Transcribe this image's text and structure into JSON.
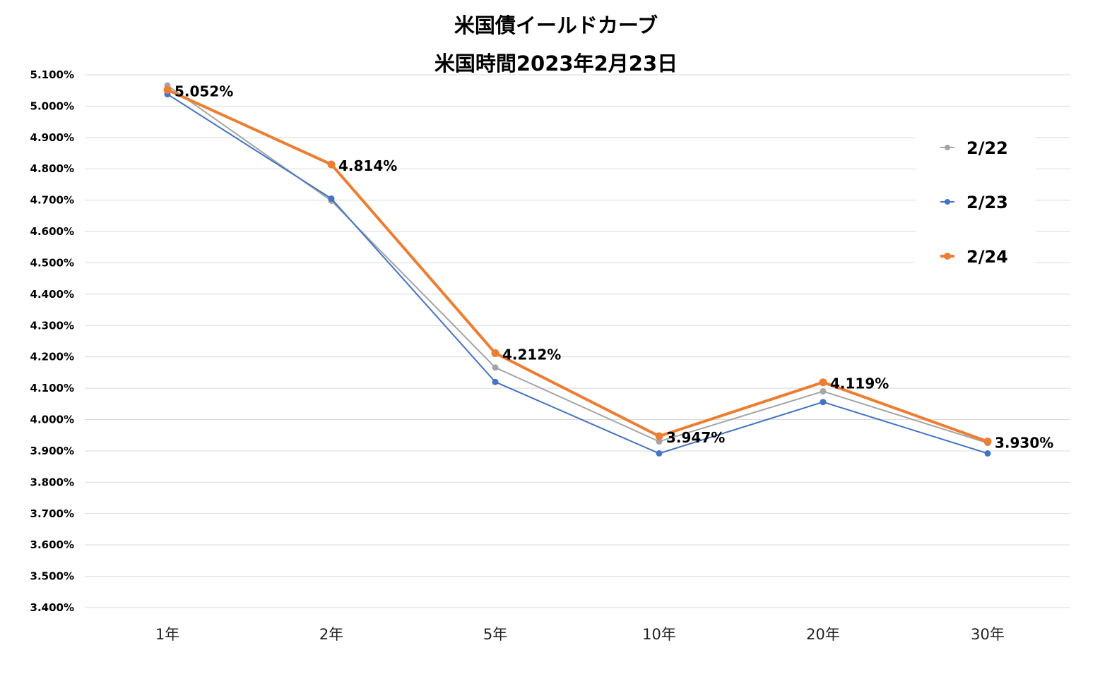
{
  "chart_data": {
    "type": "line",
    "title": "米国債イールドカーブ",
    "subtitle": "米国時間2023年2月23日",
    "categories": [
      "1年",
      "2年",
      "5年",
      "10年",
      "20年",
      "30年"
    ],
    "ylim": [
      3.4,
      5.1
    ],
    "y_ticks": [
      "5.100%",
      "5.000%",
      "4.900%",
      "4.800%",
      "4.700%",
      "4.600%",
      "4.500%",
      "4.400%",
      "4.300%",
      "4.200%",
      "4.100%",
      "4.000%",
      "3.900%",
      "3.800%",
      "3.700%",
      "3.600%",
      "3.500%",
      "3.400%"
    ],
    "grid": true,
    "legend_position": "right",
    "series": [
      {
        "name": "2/22",
        "color": "#a5a5a5",
        "values": [
          5.066,
          4.698,
          4.166,
          3.93,
          4.09,
          3.925
        ]
      },
      {
        "name": "2/23",
        "color": "#4472c4",
        "values": [
          5.038,
          4.705,
          4.12,
          3.892,
          4.056,
          3.892
        ]
      },
      {
        "name": "2/24",
        "color": "#ed7d31",
        "values": [
          5.052,
          4.814,
          4.212,
          3.947,
          4.119,
          3.93
        ]
      }
    ],
    "data_labels": [
      "5.052%",
      "4.814%",
      "4.212%",
      "3.947%",
      "4.119%",
      "3.930%"
    ]
  }
}
